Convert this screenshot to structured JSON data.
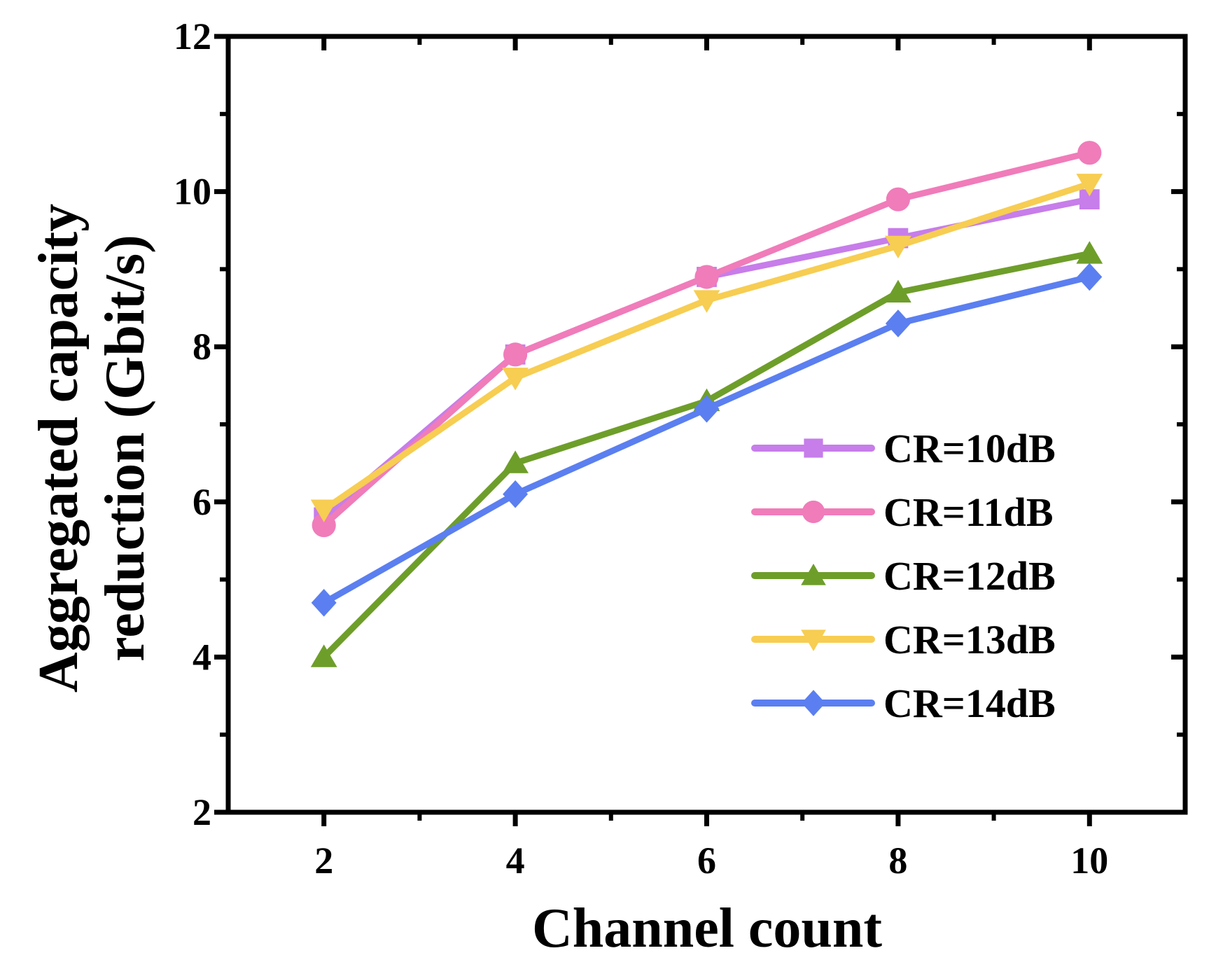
{
  "chart_data": {
    "type": "line",
    "title": "",
    "xlabel": "Channel count",
    "ylabel_line1": "Aggregated capacity",
    "ylabel_line2": "reduction (Gbit/s)",
    "x": [
      2,
      4,
      6,
      8,
      10
    ],
    "xlim": [
      1,
      11
    ],
    "ylim": [
      2,
      12
    ],
    "xticks": [
      2,
      4,
      6,
      8,
      10
    ],
    "yticks": [
      2,
      4,
      6,
      8,
      10,
      12
    ],
    "grid": false,
    "legend_position": "lower-right",
    "series": [
      {
        "name": "CR=10dB",
        "marker": "square",
        "color": "#c77dea",
        "values": [
          5.8,
          7.9,
          8.9,
          9.4,
          9.9
        ]
      },
      {
        "name": "CR=11dB",
        "marker": "circle",
        "color": "#f07cba",
        "values": [
          5.7,
          7.9,
          8.9,
          9.9,
          10.5
        ]
      },
      {
        "name": "CR=12dB",
        "marker": "triangle-up",
        "color": "#6e9e2a",
        "values": [
          4.0,
          6.5,
          7.3,
          8.7,
          9.2
        ]
      },
      {
        "name": "CR=13dB",
        "marker": "triangle-down",
        "color": "#f7cd52",
        "values": [
          5.9,
          7.6,
          8.6,
          9.3,
          10.1
        ]
      },
      {
        "name": "CR=14dB",
        "marker": "diamond",
        "color": "#5b7ff0",
        "values": [
          4.7,
          6.1,
          7.2,
          8.3,
          8.9
        ]
      }
    ]
  }
}
